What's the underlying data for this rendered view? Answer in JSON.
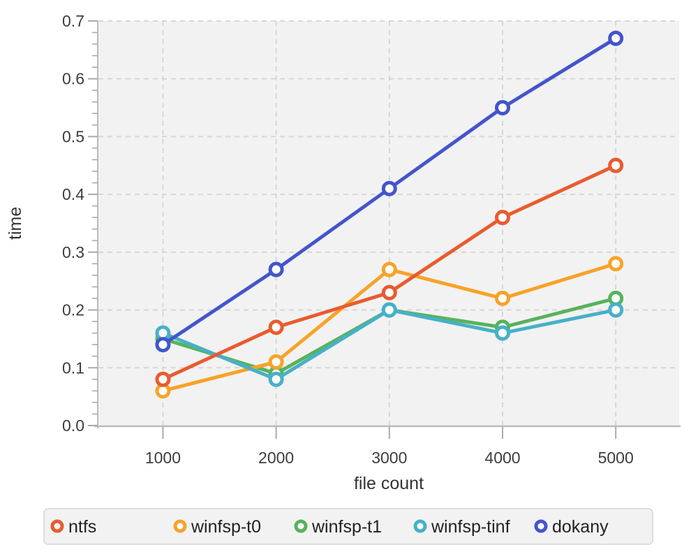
{
  "chart_data": {
    "type": "line",
    "title": "",
    "xlabel": "file count",
    "ylabel": "time",
    "x": [
      1000,
      2000,
      3000,
      4000,
      5000
    ],
    "x_tick_labels": [
      "1000",
      "2000",
      "3000",
      "4000",
      "5000"
    ],
    "y_ticks": [
      0.0,
      0.1,
      0.2,
      0.3,
      0.4,
      0.5,
      0.6,
      0.7
    ],
    "y_tick_labels": [
      "0.0",
      "0.1",
      "0.2",
      "0.3",
      "0.4",
      "0.5",
      "0.6",
      "0.7"
    ],
    "xlim": [
      430,
      5560
    ],
    "ylim": [
      0.0,
      0.7
    ],
    "y_minor_step": 0.02,
    "grid": "dashed-both",
    "legend_position": "bottom",
    "marker_style": "open-circle",
    "series": [
      {
        "name": "ntfs",
        "color": "#e95b2f",
        "values": [
          0.08,
          0.17,
          0.23,
          0.36,
          0.45
        ]
      },
      {
        "name": "winfsp-t0",
        "color": "#f7a329",
        "values": [
          0.06,
          0.11,
          0.27,
          0.22,
          0.28
        ]
      },
      {
        "name": "winfsp-t1",
        "color": "#57b35c",
        "values": [
          0.15,
          0.09,
          0.2,
          0.17,
          0.22
        ]
      },
      {
        "name": "winfsp-tinf",
        "color": "#47b0c8",
        "values": [
          0.16,
          0.08,
          0.2,
          0.16,
          0.2
        ]
      },
      {
        "name": "dokany",
        "color": "#4355cb",
        "values": [
          0.14,
          0.27,
          0.41,
          0.55,
          0.67
        ]
      }
    ],
    "draw_order": [
      "winfsp-t1",
      "winfsp-t0",
      "winfsp-tinf",
      "ntfs",
      "dokany"
    ]
  },
  "colors": {
    "panel_bg": "#f2f2f2",
    "gridline": "#d4d4d4",
    "axis_line": "#bbbbbb",
    "tick_mark": "#aaaaaa",
    "tick_text": "#3d3d3d",
    "axis_title_text": "#333333",
    "legend_bg": "#f2f2f2",
    "legend_border": "#d6d6d6",
    "legend_text": "#222222"
  }
}
